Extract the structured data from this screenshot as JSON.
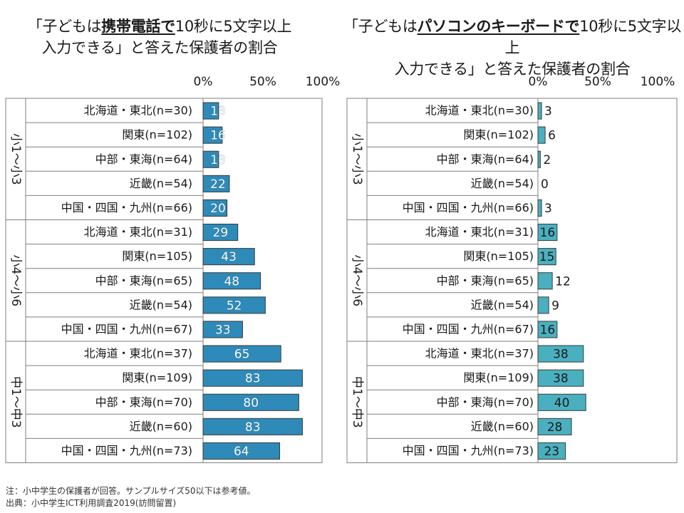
{
  "charts": [
    {
      "title_pre": "「子どもは",
      "title_emph": "携帯電話で",
      "title_post": "10秒に5文字以上",
      "title_line2": "入力できる」と答えた保護者の割合",
      "bar_color": "#2e8ab8",
      "text_color": "#ffffff"
    },
    {
      "title_pre": "「子どもは",
      "title_emph": "パソコンのキーボードで",
      "title_post": "10秒に5文字以上",
      "title_line2": "入力できる」と答えた保護者の割合",
      "bar_color": "#4ab0c0",
      "text_color": "#1a1a1a"
    }
  ],
  "chart_data": [
    {
      "type": "bar",
      "title": "「子どもは携帯電話で10秒に5文字以上入力できる」と答えた保護者の割合",
      "xticks": [
        "0%",
        "50%",
        "100%"
      ],
      "xlim": [
        0,
        100
      ],
      "groups": [
        "小1～小3",
        "小4～小6",
        "中1～中3"
      ],
      "categories": [
        "北海道・東北(n=30)",
        "関東(n=102)",
        "中部・東海(n=64)",
        "近畿(n=54)",
        "中国・四国・九州(n=66)",
        "北海道・東北(n=31)",
        "関東(n=105)",
        "中部・東海(n=65)",
        "近畿(n=54)",
        "中国・四国・九州(n=67)",
        "北海道・東北(n=37)",
        "関東(n=109)",
        "中部・東海(n=70)",
        "近畿(n=60)",
        "中国・四国・九州(n=73)"
      ],
      "values": [
        13,
        16,
        13,
        22,
        20,
        29,
        43,
        48,
        52,
        33,
        65,
        83,
        80,
        83,
        64
      ]
    },
    {
      "type": "bar",
      "title": "「子どもはパソコンのキーボードで10秒に5文字以上入力できる」と答えた保護者の割合",
      "xticks": [
        "0%",
        "50%",
        "100%"
      ],
      "xlim": [
        0,
        100
      ],
      "groups": [
        "小1～小3",
        "小4～小6",
        "中1～中3"
      ],
      "categories": [
        "北海道・東北(n=30)",
        "関東(n=102)",
        "中部・東海(n=64)",
        "近畿(n=54)",
        "中国・四国・九州(n=66)",
        "北海道・東北(n=31)",
        "関東(n=105)",
        "中部・東海(n=65)",
        "近畿(n=54)",
        "中国・四国・九州(n=67)",
        "北海道・東北(n=37)",
        "関東(n=109)",
        "中部・東海(n=70)",
        "近畿(n=60)",
        "中国・四国・九州(n=73)"
      ],
      "values": [
        3,
        6,
        2,
        0,
        3,
        16,
        15,
        12,
        9,
        16,
        38,
        38,
        40,
        28,
        23
      ]
    }
  ],
  "footnotes": {
    "note": "注：小中学生の保護者が回答。サンプルサイズ50以下は参考値。",
    "source": "出典：小中学生ICT利用調査2019(訪問留置)"
  }
}
